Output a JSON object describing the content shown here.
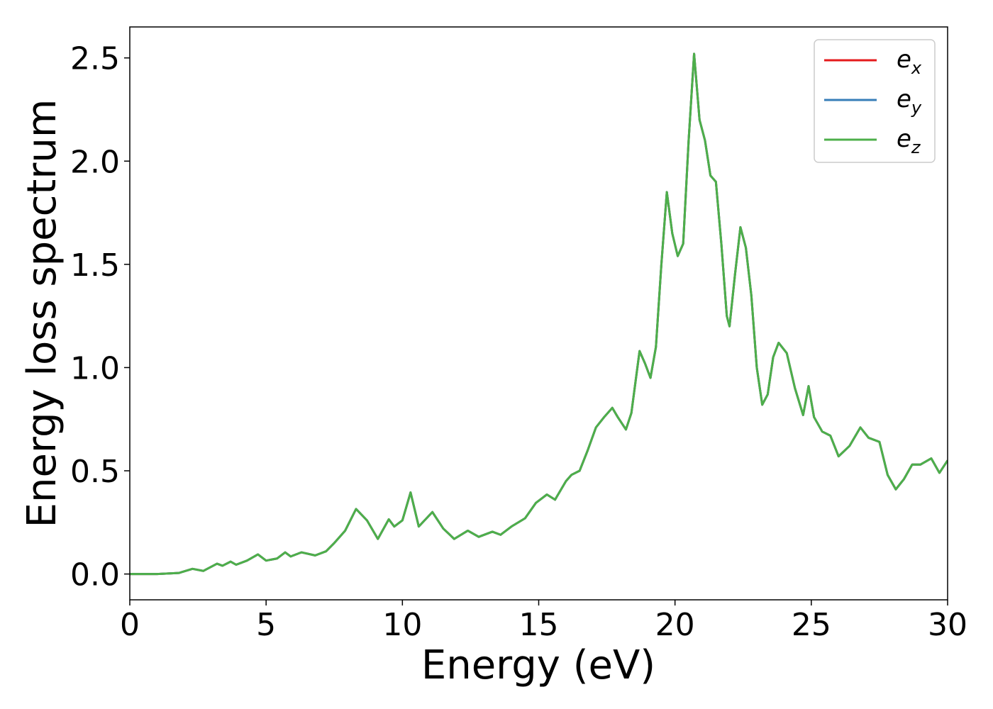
{
  "chart_data": {
    "type": "line",
    "xlabel": "Energy (eV)",
    "ylabel": "Energy loss spectrum",
    "x": [
      0,
      1,
      1.8,
      2.3,
      2.7,
      3.2,
      3.4,
      3.7,
      3.9,
      4.3,
      4.7,
      5.0,
      5.4,
      5.7,
      5.9,
      6.3,
      6.8,
      7.2,
      7.5,
      7.9,
      8.3,
      8.7,
      9.1,
      9.5,
      9.7,
      10.0,
      10.3,
      10.6,
      11.1,
      11.5,
      11.9,
      12.4,
      12.8,
      13.3,
      13.6,
      14.0,
      14.5,
      14.9,
      15.3,
      15.6,
      16.0,
      16.2,
      16.5,
      16.8,
      17.1,
      17.4,
      17.7,
      17.9,
      18.2,
      18.4,
      18.7,
      18.9,
      19.1,
      19.3,
      19.5,
      19.7,
      19.9,
      20.1,
      20.3,
      20.5,
      20.7,
      20.9,
      21.1,
      21.3,
      21.5,
      21.7,
      21.9,
      22.0,
      22.2,
      22.4,
      22.6,
      22.8,
      23.0,
      23.2,
      23.4,
      23.6,
      23.8,
      24.1,
      24.4,
      24.7,
      24.9,
      25.1,
      25.4,
      25.7,
      26.0,
      26.4,
      26.8,
      27.1,
      27.5,
      27.8,
      28.1,
      28.4,
      28.7,
      29.0,
      29.4,
      29.7,
      30
    ],
    "series": [
      {
        "name": "ex",
        "color": "#e41a1c",
        "values": [
          0,
          0,
          0.005,
          0.025,
          0.015,
          0.05,
          0.04,
          0.06,
          0.045,
          0.065,
          0.095,
          0.065,
          0.075,
          0.105,
          0.085,
          0.105,
          0.09,
          0.11,
          0.15,
          0.21,
          0.315,
          0.26,
          0.17,
          0.265,
          0.23,
          0.26,
          0.395,
          0.23,
          0.3,
          0.22,
          0.17,
          0.21,
          0.18,
          0.205,
          0.19,
          0.23,
          0.27,
          0.345,
          0.385,
          0.36,
          0.45,
          0.48,
          0.5,
          0.6,
          0.71,
          0.76,
          0.805,
          0.76,
          0.7,
          0.78,
          1.08,
          1.02,
          0.95,
          1.1,
          1.5,
          1.85,
          1.65,
          1.54,
          1.6,
          2.1,
          2.52,
          2.2,
          2.1,
          1.93,
          1.9,
          1.6,
          1.25,
          1.2,
          1.45,
          1.68,
          1.58,
          1.35,
          1.0,
          0.82,
          0.87,
          1.05,
          1.12,
          1.07,
          0.9,
          0.77,
          0.91,
          0.76,
          0.69,
          0.67,
          0.57,
          0.62,
          0.71,
          0.66,
          0.64,
          0.48,
          0.41,
          0.46,
          0.53,
          0.53,
          0.56,
          0.49,
          0.55
        ]
      },
      {
        "name": "ey",
        "color": "#377eb8",
        "values": [
          0,
          0,
          0.005,
          0.025,
          0.015,
          0.05,
          0.04,
          0.06,
          0.045,
          0.065,
          0.095,
          0.065,
          0.075,
          0.105,
          0.085,
          0.105,
          0.09,
          0.11,
          0.15,
          0.21,
          0.315,
          0.26,
          0.17,
          0.265,
          0.23,
          0.26,
          0.395,
          0.23,
          0.3,
          0.22,
          0.17,
          0.21,
          0.18,
          0.205,
          0.19,
          0.23,
          0.27,
          0.345,
          0.385,
          0.36,
          0.45,
          0.48,
          0.5,
          0.6,
          0.71,
          0.76,
          0.805,
          0.76,
          0.7,
          0.78,
          1.08,
          1.02,
          0.95,
          1.1,
          1.5,
          1.85,
          1.65,
          1.54,
          1.6,
          2.1,
          2.52,
          2.2,
          2.1,
          1.93,
          1.9,
          1.6,
          1.25,
          1.2,
          1.45,
          1.68,
          1.58,
          1.35,
          1.0,
          0.82,
          0.87,
          1.05,
          1.12,
          1.07,
          0.9,
          0.77,
          0.91,
          0.76,
          0.69,
          0.67,
          0.57,
          0.62,
          0.71,
          0.66,
          0.64,
          0.48,
          0.41,
          0.46,
          0.53,
          0.53,
          0.56,
          0.49,
          0.55
        ]
      },
      {
        "name": "ez",
        "color": "#4daf4a",
        "values": [
          0,
          0,
          0.005,
          0.025,
          0.015,
          0.05,
          0.04,
          0.06,
          0.045,
          0.065,
          0.095,
          0.065,
          0.075,
          0.105,
          0.085,
          0.105,
          0.09,
          0.11,
          0.15,
          0.21,
          0.315,
          0.26,
          0.17,
          0.265,
          0.23,
          0.26,
          0.395,
          0.23,
          0.3,
          0.22,
          0.17,
          0.21,
          0.18,
          0.205,
          0.19,
          0.23,
          0.27,
          0.345,
          0.385,
          0.36,
          0.45,
          0.48,
          0.5,
          0.6,
          0.71,
          0.76,
          0.805,
          0.76,
          0.7,
          0.78,
          1.08,
          1.02,
          0.95,
          1.1,
          1.5,
          1.85,
          1.65,
          1.54,
          1.6,
          2.1,
          2.52,
          2.2,
          2.1,
          1.93,
          1.9,
          1.6,
          1.25,
          1.2,
          1.45,
          1.68,
          1.58,
          1.35,
          1.0,
          0.82,
          0.87,
          1.05,
          1.12,
          1.07,
          0.9,
          0.77,
          0.91,
          0.76,
          0.69,
          0.67,
          0.57,
          0.62,
          0.71,
          0.66,
          0.64,
          0.48,
          0.41,
          0.46,
          0.53,
          0.53,
          0.56,
          0.49,
          0.55
        ]
      }
    ],
    "xlim": [
      0,
      30
    ],
    "xticks": [
      0,
      5,
      10,
      15,
      20,
      25,
      30
    ],
    "ylim": [
      -0.125,
      2.65
    ],
    "yticks": [
      {
        "value": 0,
        "label": "0.0"
      },
      0.5,
      {
        "value": 1,
        "label": "1.0"
      },
      1.5,
      {
        "value": 2,
        "label": "2.0"
      },
      2.5
    ],
    "grid": false,
    "legend": "upper right"
  }
}
